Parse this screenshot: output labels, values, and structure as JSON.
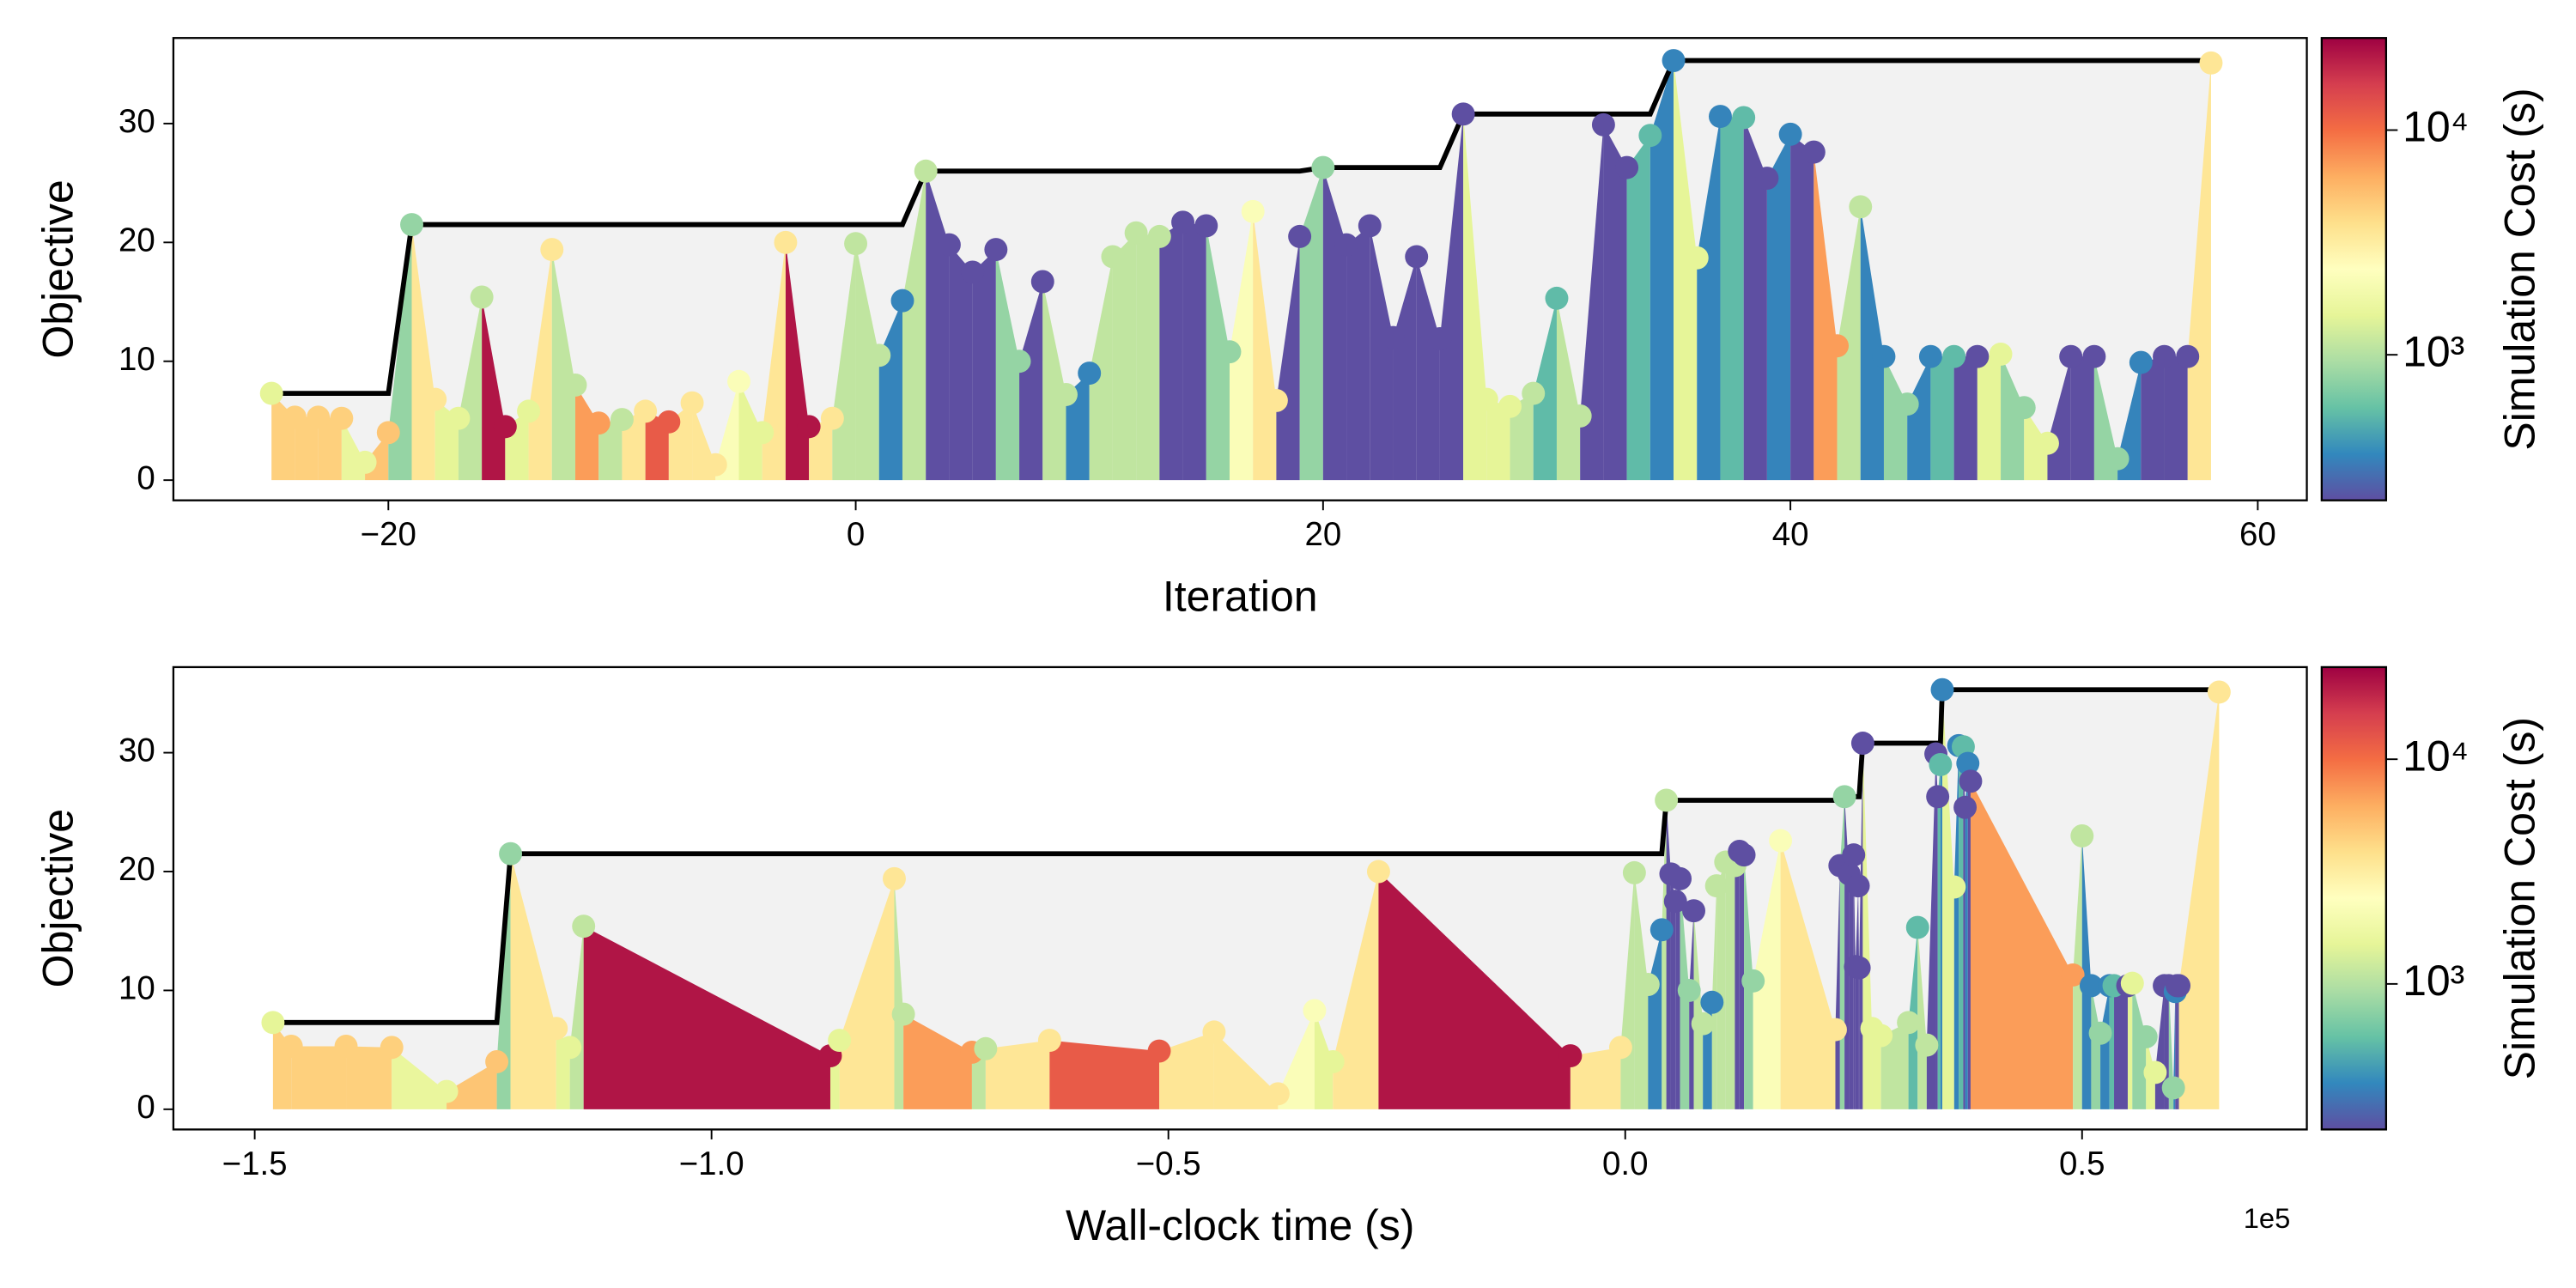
{
  "chart_data": [
    {
      "type": "spike",
      "x_label": "Iteration",
      "y_label": "Objective",
      "x": [
        -25,
        -24,
        -23,
        -22,
        -21,
        -20,
        -19,
        -18,
        -17,
        -16,
        -15,
        -14,
        -13,
        -12,
        -11,
        -10,
        -9,
        -8,
        -7,
        -6,
        -5,
        -4,
        -3,
        -2,
        -1,
        0,
        1,
        2,
        3,
        4,
        5,
        6,
        7,
        8,
        9,
        10,
        11,
        12,
        13,
        14,
        15,
        16,
        17,
        18,
        19,
        20,
        21,
        22,
        23,
        24,
        25,
        26,
        27,
        28,
        29,
        30,
        31,
        32,
        33,
        34,
        35,
        36,
        37,
        38,
        39,
        40,
        41,
        42,
        43,
        44,
        45,
        46,
        47,
        48,
        49,
        50,
        51,
        52,
        53,
        54,
        55,
        56,
        57,
        58
      ],
      "values": [
        7.3,
        5.3,
        5.3,
        5.2,
        1.5,
        4.0,
        21.5,
        6.8,
        5.2,
        15.4,
        4.5,
        5.8,
        19.4,
        8.0,
        4.8,
        5.1,
        5.8,
        4.9,
        6.5,
        1.3,
        8.3,
        4.0,
        20.0,
        4.5,
        5.2,
        19.9,
        10.5,
        15.1,
        26.0,
        19.8,
        17.5,
        19.4,
        10.0,
        16.7,
        7.2,
        9.0,
        18.8,
        20.8,
        20.5,
        21.7,
        21.4,
        10.8,
        22.6,
        6.7,
        20.5,
        26.3,
        19.8,
        21.4,
        12.0,
        18.8,
        11.9,
        30.8,
        6.8,
        6.2,
        7.3,
        15.3,
        5.4,
        29.9,
        26.3,
        29.0,
        35.3,
        18.7,
        30.6,
        30.5,
        25.4,
        29.1,
        27.6,
        11.3,
        23.0,
        10.4,
        6.4,
        10.4,
        10.4,
        10.4,
        10.6,
        6.1,
        3.1,
        10.4,
        10.4,
        1.8,
        9.9,
        10.4,
        10.4,
        35.1
      ],
      "cost": [
        1500,
        4500,
        4500,
        4500,
        1600,
        5000,
        800,
        3500,
        1500,
        1100,
        22000,
        1500,
        3500,
        1100,
        7000,
        1100,
        3500,
        12000,
        3500,
        3500,
        2200,
        1500,
        3500,
        22000,
        3500,
        1100,
        1100,
        350,
        1100,
        220,
        220,
        220,
        800,
        220,
        1100,
        350,
        1100,
        1100,
        1100,
        220,
        220,
        800,
        2200,
        3500,
        220,
        800,
        220,
        220,
        220,
        220,
        220,
        220,
        1500,
        1500,
        1100,
        550,
        1100,
        220,
        220,
        550,
        350,
        1500,
        350,
        550,
        220,
        350,
        220,
        7000,
        1100,
        350,
        800,
        350,
        550,
        220,
        1500,
        800,
        1500,
        220,
        220,
        800,
        350,
        220,
        220,
        3500
      ],
      "xlim": [
        -29.2,
        62.1
      ],
      "xticks": [
        {
          "value": -20,
          "label": "−20"
        },
        0,
        20,
        40,
        60
      ],
      "ylim": [
        -1.7,
        37.2
      ],
      "yticks": [
        0,
        10,
        20,
        30
      ],
      "line_color": "#000000",
      "fill_color": "#f2f2f2",
      "colorbar": {
        "label": "Simulation Cost (s)",
        "scale": "log",
        "lim": [
          225,
          25700
        ],
        "ticks": [
          {
            "value": 1000,
            "label": "10³"
          },
          {
            "value": 10000,
            "label": "10⁴"
          }
        ],
        "colormap": [
          "#5e4fa2",
          "#3288bd",
          "#66c2a5",
          "#abdda4",
          "#e6f598",
          "#ffffbf",
          "#fee08b",
          "#fdae61",
          "#f46d43",
          "#d53e4f",
          "#9e0142"
        ]
      }
    },
    {
      "type": "spike",
      "x_label": "Wall-clock time (s)",
      "y_label": "Objective",
      "x_offset_label": "1e5",
      "x": [
        -1.48,
        -1.46,
        -1.4,
        -1.35,
        -1.29,
        -1.235,
        -1.22,
        -1.17,
        -1.155,
        -1.14,
        -0.87,
        -0.86,
        -0.8,
        -0.79,
        -0.715,
        -0.7,
        -0.63,
        -0.51,
        -0.45,
        -0.38,
        -0.34,
        -0.32,
        -0.27,
        -0.06,
        -0.005,
        0.01,
        0.025,
        0.04,
        0.045,
        0.05,
        0.055,
        0.06,
        0.07,
        0.075,
        0.085,
        0.095,
        0.1,
        0.11,
        0.12,
        0.125,
        0.13,
        0.14,
        0.17,
        0.23,
        0.235,
        0.24,
        0.245,
        0.25,
        0.252,
        0.255,
        0.256,
        0.26,
        0.27,
        0.28,
        0.31,
        0.32,
        0.33,
        0.34,
        0.342,
        0.345,
        0.347,
        0.36,
        0.365,
        0.37,
        0.372,
        0.375,
        0.378,
        0.49,
        0.5,
        0.51,
        0.52,
        0.53,
        0.535,
        0.55,
        0.555,
        0.57,
        0.58,
        0.59,
        0.595,
        0.6,
        0.602,
        0.604,
        0.606,
        0.65
      ],
      "values": [
        7.3,
        5.3,
        5.3,
        5.2,
        1.5,
        4.0,
        21.5,
        6.8,
        5.2,
        15.4,
        4.5,
        5.8,
        19.4,
        8.0,
        4.8,
        5.1,
        5.8,
        4.9,
        6.5,
        1.3,
        8.3,
        4.0,
        20.0,
        4.5,
        5.2,
        19.9,
        10.5,
        15.1,
        26.0,
        19.8,
        17.5,
        19.4,
        10.0,
        16.7,
        7.2,
        9.0,
        18.8,
        20.8,
        20.5,
        21.7,
        21.4,
        10.8,
        22.6,
        6.7,
        20.5,
        26.3,
        19.8,
        21.4,
        12.0,
        18.8,
        11.9,
        30.8,
        6.8,
        6.2,
        7.3,
        15.3,
        5.4,
        29.9,
        26.3,
        29.0,
        35.3,
        18.7,
        30.6,
        30.5,
        25.4,
        29.1,
        27.6,
        11.3,
        23.0,
        10.4,
        6.4,
        10.4,
        10.4,
        10.4,
        10.6,
        6.1,
        3.1,
        10.4,
        10.4,
        1.8,
        9.9,
        10.4,
        10.4,
        35.1
      ],
      "cost": [
        1500,
        4500,
        4500,
        4500,
        1600,
        5000,
        800,
        3500,
        1500,
        1100,
        22000,
        1500,
        3500,
        1100,
        7000,
        1100,
        3500,
        12000,
        3500,
        3500,
        2200,
        1500,
        3500,
        22000,
        3500,
        1100,
        1100,
        350,
        1100,
        220,
        220,
        220,
        800,
        220,
        1100,
        350,
        1100,
        1100,
        1100,
        220,
        220,
        800,
        2200,
        3500,
        220,
        800,
        220,
        220,
        220,
        220,
        220,
        220,
        1500,
        1500,
        1100,
        550,
        1100,
        220,
        220,
        550,
        350,
        1500,
        350,
        550,
        220,
        350,
        220,
        7000,
        1100,
        350,
        800,
        350,
        550,
        220,
        1500,
        800,
        1500,
        220,
        220,
        800,
        350,
        220,
        220,
        3500
      ],
      "xlim": [
        -1.589,
        0.746
      ],
      "xticks": [
        {
          "value": -1.5,
          "label": "−1.5"
        },
        {
          "value": -1.0,
          "label": "−1.0"
        },
        {
          "value": -0.5,
          "label": "−0.5"
        },
        {
          "value": 0,
          "label": "0.0"
        },
        0.5
      ],
      "ylim": [
        -1.7,
        37.2
      ],
      "yticks": [
        0,
        10,
        20,
        30
      ],
      "line_color": "#000000",
      "fill_color": "#f2f2f2",
      "colorbar": {
        "label": "Simulation Cost (s)",
        "scale": "log",
        "lim": [
          225,
          25700
        ],
        "ticks": [
          {
            "value": 1000,
            "label": "10³"
          },
          {
            "value": 10000,
            "label": "10⁴"
          }
        ],
        "colormap": [
          "#5e4fa2",
          "#3288bd",
          "#66c2a5",
          "#abdda4",
          "#e6f598",
          "#ffffbf",
          "#fee08b",
          "#fdae61",
          "#f46d43",
          "#d53e4f",
          "#9e0142"
        ]
      }
    }
  ]
}
